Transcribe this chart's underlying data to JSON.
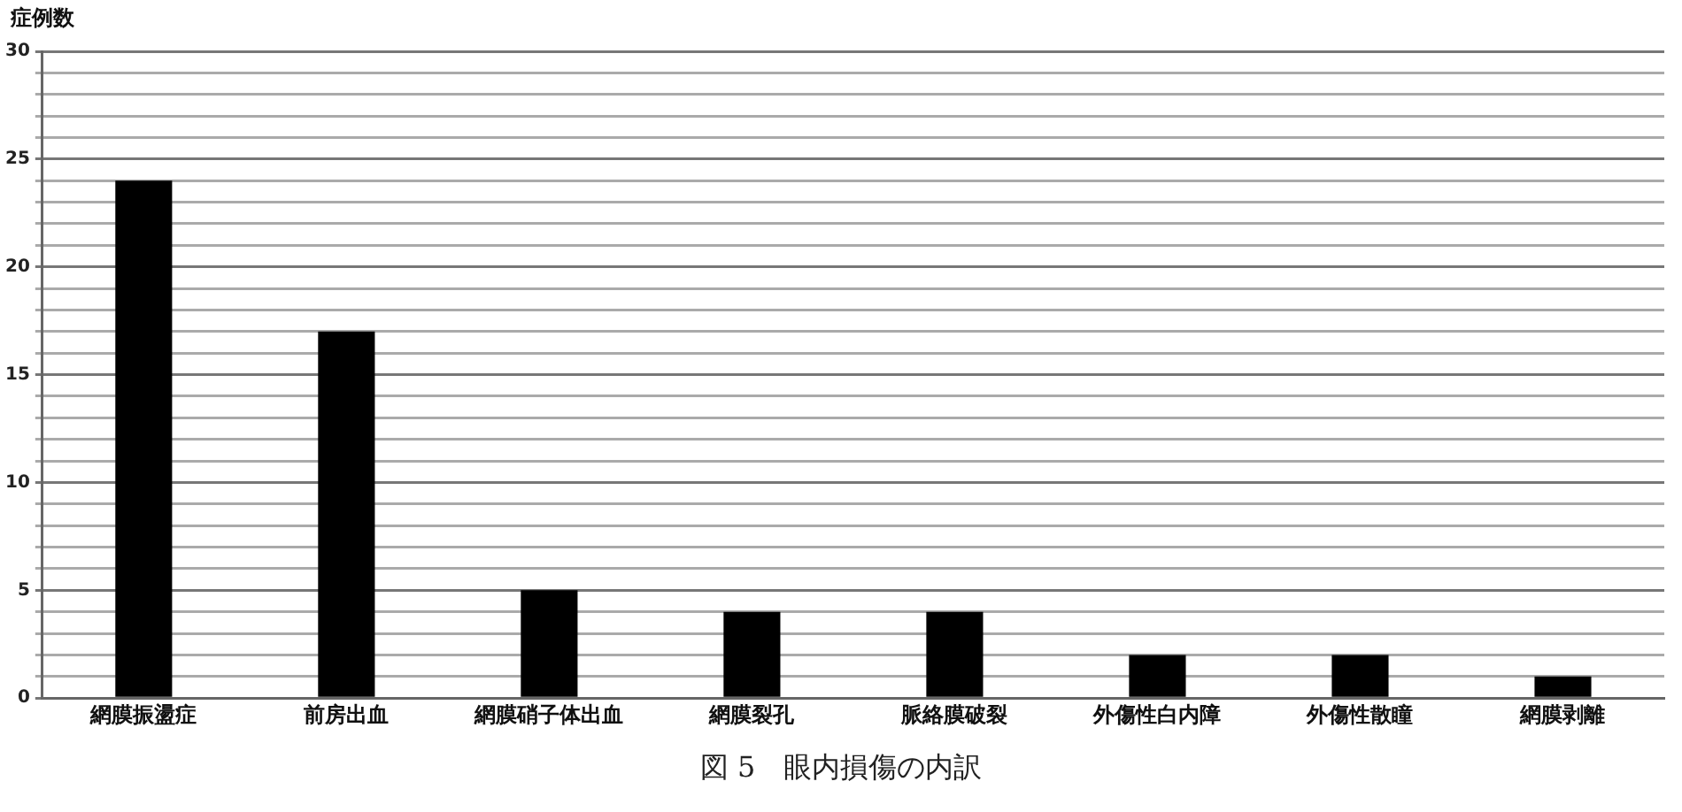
{
  "chart_data": {
    "type": "bar",
    "ylabel": "症例数",
    "categories": [
      "網膜振盪症",
      "前房出血",
      "網膜硝子体出血",
      "網膜裂孔",
      "脈絡膜破裂",
      "外傷性白内障",
      "外傷性散瞳",
      "網膜剥離"
    ],
    "values": [
      24,
      17,
      5,
      4,
      4,
      2,
      2,
      1
    ],
    "color": "#000000",
    "ylim": [
      0,
      30
    ],
    "yticks": [
      0,
      {
        "value": 1,
        "label": null
      },
      {
        "value": 2,
        "label": null
      },
      {
        "value": 3,
        "label": null
      },
      {
        "value": 4,
        "label": null
      },
      5,
      {
        "value": 6,
        "label": null
      },
      {
        "value": 7,
        "label": null
      },
      {
        "value": 8,
        "label": null
      },
      {
        "value": 9,
        "label": null
      },
      10,
      {
        "value": 11,
        "label": null
      },
      {
        "value": 12,
        "label": null
      },
      {
        "value": 13,
        "label": null
      },
      {
        "value": 14,
        "label": null
      },
      15,
      {
        "value": 16,
        "label": null
      },
      {
        "value": 17,
        "label": null
      },
      {
        "value": 18,
        "label": null
      },
      {
        "value": 19,
        "label": null
      },
      20,
      {
        "value": 21,
        "label": null
      },
      {
        "value": 22,
        "label": null
      },
      {
        "value": 23,
        "label": null
      },
      {
        "value": 24,
        "label": null
      },
      25,
      {
        "value": 26,
        "label": null
      },
      {
        "value": 27,
        "label": null
      },
      {
        "value": 28,
        "label": null
      },
      {
        "value": 29,
        "label": null
      },
      30
    ],
    "grid": "y",
    "legend": false,
    "annotations": [
      "図 5　眼内損傷の内訳"
    ]
  }
}
